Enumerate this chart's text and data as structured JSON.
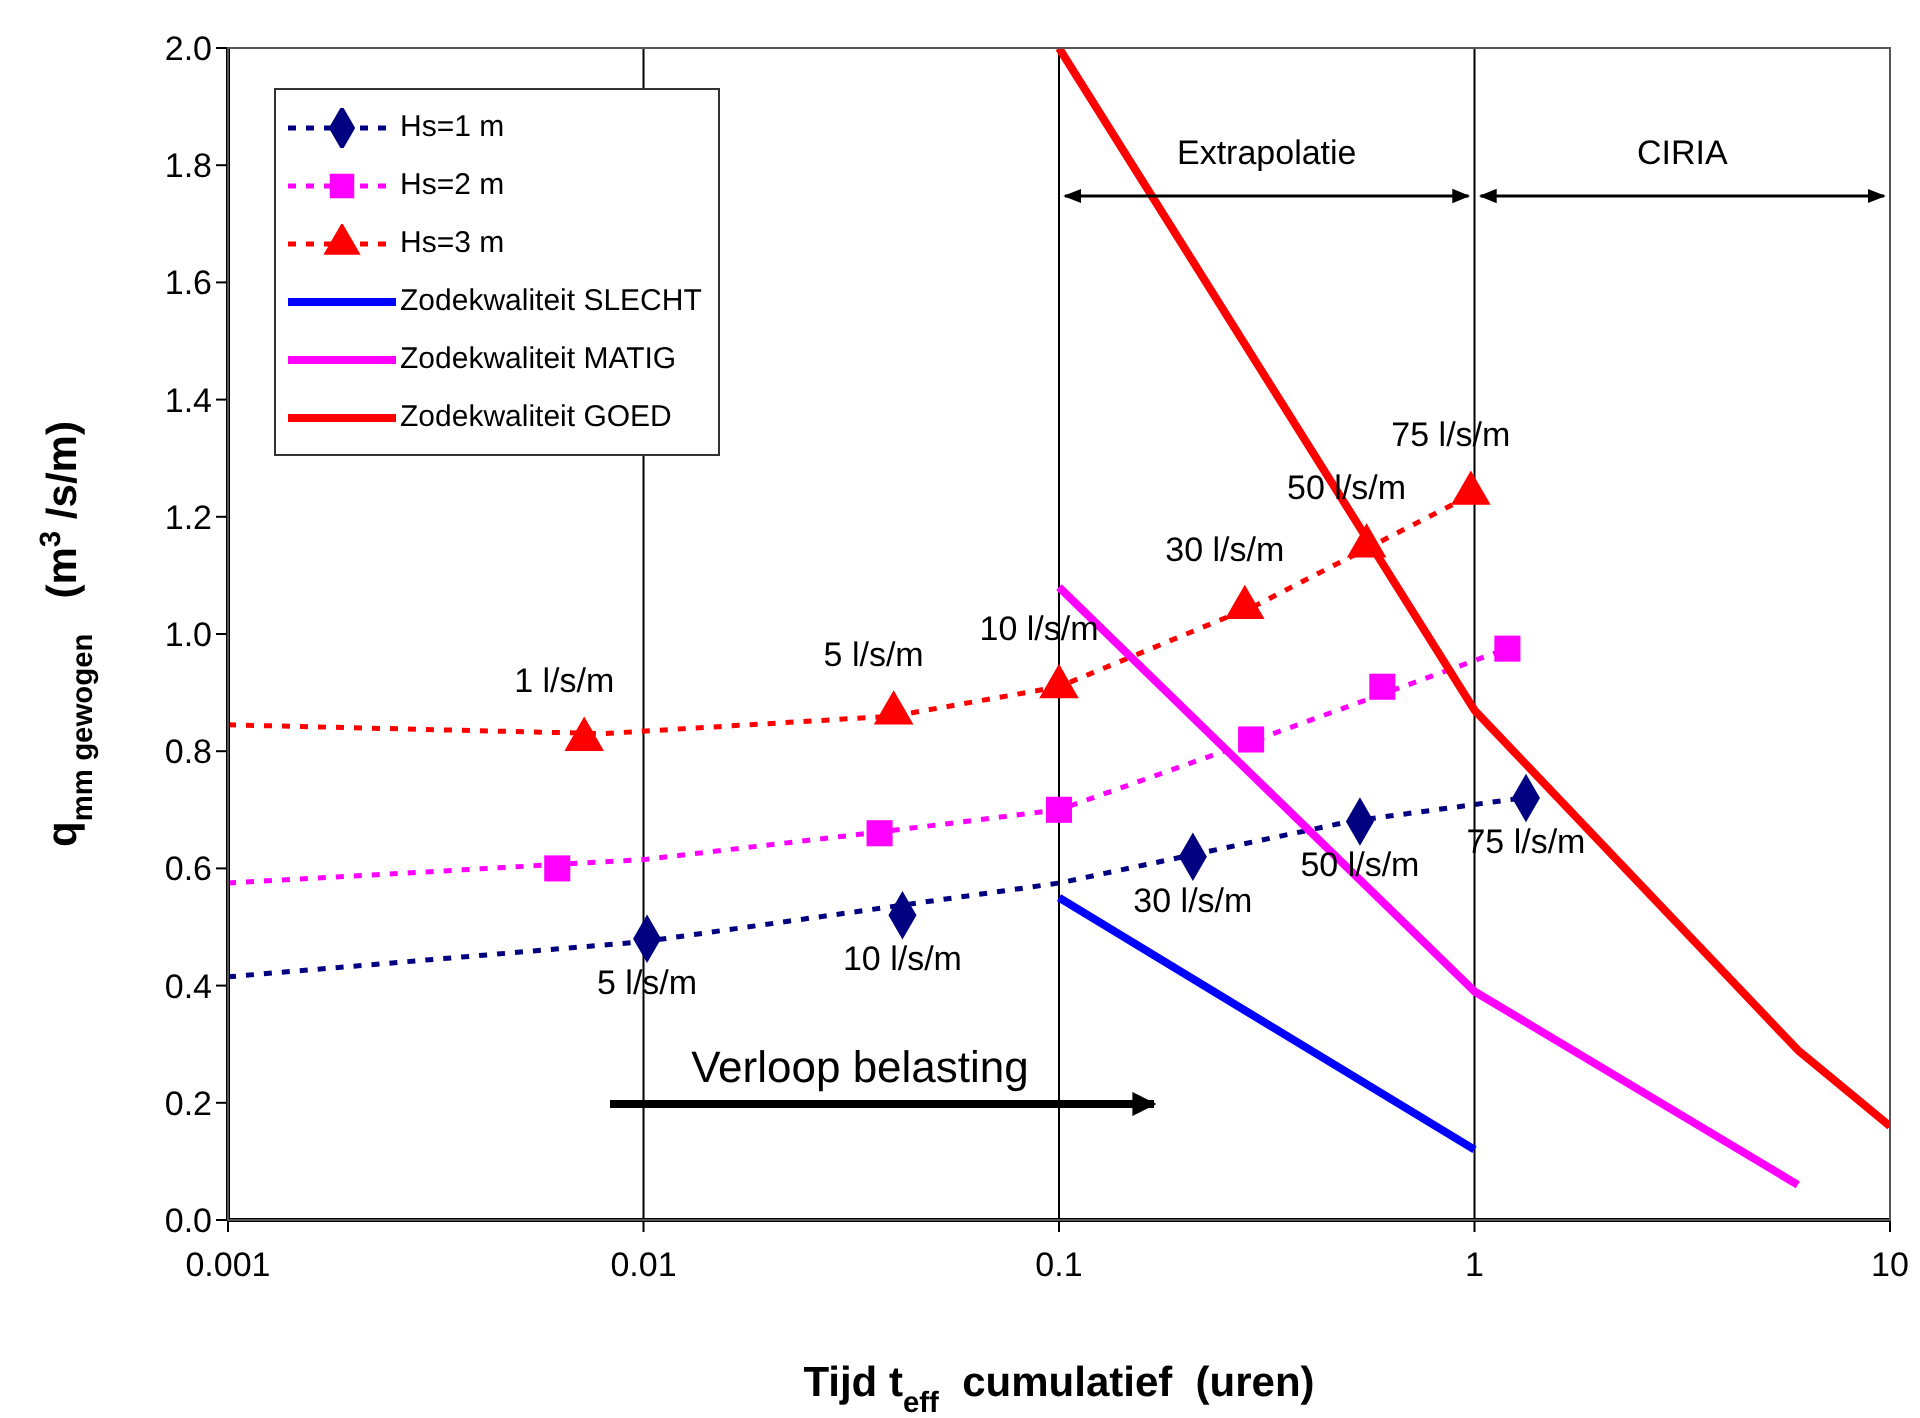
{
  "chart_data": {
    "type": "scatter",
    "xlabel": "Tijd t$_{eff}$ cumulatief  (uren)",
    "ylabel": "q$_{mm gewogen}$  (m$^{3}$/s/m)",
    "log": "x",
    "grid": "x",
    "legend": "top left",
    "xlim": [
      0.001,
      10
    ],
    "xticks": [
      0.001,
      0.01,
      0.1,
      1,
      10
    ],
    "ylim": [
      0,
      2
    ],
    "yticks": [
      {
        "value": 0,
        "label": "0.0"
      },
      {
        "value": 0.2,
        "label": "0.2"
      },
      {
        "value": 0.4,
        "label": "0.4"
      },
      {
        "value": 0.6,
        "label": "0.6"
      },
      {
        "value": 0.8,
        "label": "0.8"
      },
      {
        "value": 1,
        "label": "1.0"
      },
      {
        "value": 1.2,
        "label": "1.2"
      },
      {
        "value": 1.4,
        "label": "1.4"
      },
      {
        "value": 1.6,
        "label": "1.6"
      },
      {
        "value": 1.8,
        "label": "1.8"
      },
      {
        "value": 2,
        "label": "2.0"
      }
    ],
    "series": [
      {
        "type": "line",
        "color": "#000080",
        "line_style": "dotted",
        "marker": "none",
        "x": [
          0.001,
          0.01,
          0.1,
          0.5,
          1.3
        ],
        "values": [
          0.415,
          0.475,
          0.575,
          0.68,
          0.72
        ]
      },
      {
        "type": "line",
        "color": "#ff00ff",
        "line_style": "dotted",
        "marker": "none",
        "x": [
          0.001,
          0.01,
          0.04,
          0.1,
          0.3,
          1.2
        ],
        "values": [
          0.575,
          0.615,
          0.665,
          0.7,
          0.82,
          0.975
        ]
      },
      {
        "type": "line",
        "color": "#ff0000",
        "line_style": "dotted",
        "marker": "none",
        "x": [
          0.001,
          0.008,
          0.04,
          0.1,
          0.3,
          1
        ],
        "values": [
          0.845,
          0.83,
          0.86,
          0.91,
          1.05,
          1.24
        ]
      },
      {
        "name": "Hs=1 m",
        "color": "#000080",
        "marker": "diamond",
        "line_style": "dotted",
        "x": [
          0.0102,
          0.042,
          0.21,
          0.53,
          1.33
        ],
        "values": [
          0.48,
          0.52,
          0.62,
          0.68,
          0.72
        ]
      },
      {
        "name": "Hs=2 m",
        "color": "#ff00ff",
        "marker": "square",
        "line_style": "dotted",
        "x": [
          0.0062,
          0.037,
          0.1,
          0.29,
          0.6,
          1.2
        ],
        "values": [
          0.6,
          0.66,
          0.7,
          0.82,
          0.91,
          0.975
        ]
      },
      {
        "name": "Hs=3 m",
        "color": "#ff0000",
        "marker": "triangle",
        "line_style": "dotted",
        "x": [
          0.0072,
          0.04,
          0.1,
          0.28,
          0.55,
          0.98
        ],
        "values": [
          0.82,
          0.865,
          0.91,
          1.045,
          1.15,
          1.24
        ]
      },
      {
        "type": "line",
        "name": "Zodekwaliteit SLECHT",
        "color": "#0000ff",
        "line_style": "solid",
        "marker": "none",
        "x": [
          0.1,
          1
        ],
        "values": [
          0.55,
          0.12
        ]
      },
      {
        "type": "line",
        "name": "Zodekwaliteit MATIG",
        "color": "#ff00ff",
        "line_style": "solid",
        "marker": "none",
        "x": [
          0.1,
          1,
          6
        ],
        "values": [
          1.08,
          0.39,
          0.06
        ]
      },
      {
        "type": "line",
        "name": "Zodekwaliteit GOED",
        "color": "#ff0000",
        "line_style": "solid",
        "marker": "none",
        "x": [
          0.1,
          1,
          6,
          10
        ],
        "values": [
          2,
          0.87,
          0.29,
          0.16
        ]
      }
    ],
    "annotations": [
      {
        "text": "1 l/s/m",
        "x": 0.0072,
        "y": 0.82
      },
      {
        "text": "5 l/s/m",
        "x": 0.04,
        "y": 0.865
      },
      {
        "text": "10 l/s/m",
        "x": 0.1,
        "y": 0.91
      },
      {
        "text": "30 l/s/m",
        "x": 0.28,
        "y": 1.045
      },
      {
        "text": "50 l/s/m",
        "x": 0.55,
        "y": 1.15
      },
      {
        "text": "75 l/s/m",
        "x": 0.98,
        "y": 1.24
      },
      {
        "text": "5 l/s/m",
        "x": 0.0102,
        "y": 0.48
      },
      {
        "text": "10 l/s/m",
        "x": 0.042,
        "y": 0.52
      },
      {
        "text": "30 l/s/m",
        "x": 0.21,
        "y": 0.62
      },
      {
        "text": "50 l/s/m",
        "x": 0.53,
        "y": 0.68
      },
      {
        "text": "75 l/s/m",
        "x": 1.33,
        "y": 0.72
      },
      "Extrapolatie",
      "CIRIA",
      "Verloop belasting"
    ]
  }
}
